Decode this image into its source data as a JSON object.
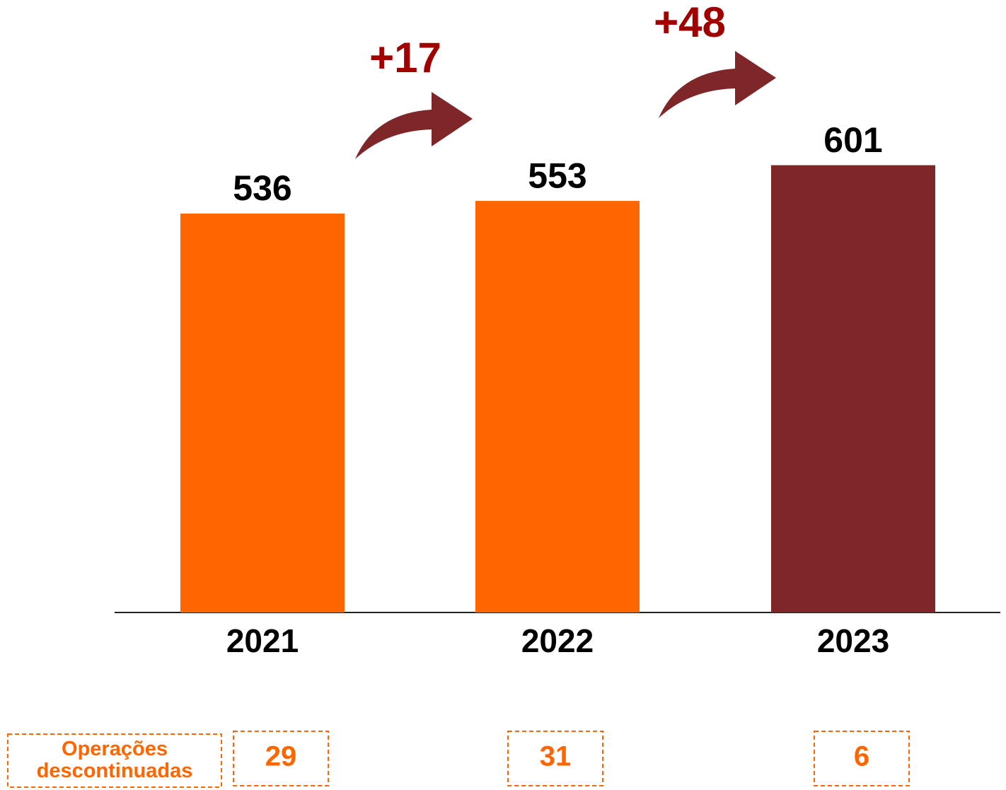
{
  "chart_data": {
    "type": "bar",
    "categories": [
      "2021",
      "2022",
      "2023"
    ],
    "values": [
      536,
      553,
      601
    ],
    "colors": [
      "#ff6600",
      "#ff6600",
      "#7f2628"
    ],
    "ylim": [
      0,
      650
    ],
    "annotations": [
      "+17",
      "+48"
    ],
    "discontinued": {
      "label": "Operações descontinuadas",
      "values": [
        29,
        31,
        6
      ]
    }
  }
}
